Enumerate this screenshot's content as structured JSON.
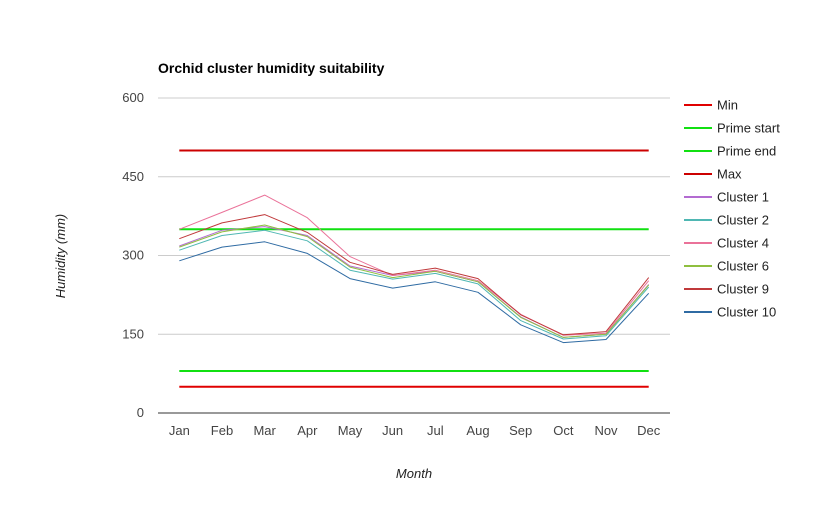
{
  "chart_data": {
    "type": "line",
    "title": "Orchid cluster humidity suitability",
    "xlabel": "Month",
    "ylabel": "Humidity (mm)",
    "categories": [
      "Jan",
      "Feb",
      "Mar",
      "Apr",
      "May",
      "Jun",
      "Jul",
      "Aug",
      "Sep",
      "Oct",
      "Nov",
      "Dec"
    ],
    "ylim": [
      0,
      600
    ],
    "yticks": [
      0,
      150,
      300,
      450,
      600
    ],
    "grid": true,
    "legend_position": "right",
    "series": [
      {
        "name": "Min",
        "color": "#e00000",
        "width": 2,
        "values": [
          50,
          50,
          50,
          50,
          50,
          50,
          50,
          50,
          50,
          50,
          50,
          50
        ]
      },
      {
        "name": "Prime start",
        "color": "#11e011",
        "width": 2,
        "values": [
          80,
          80,
          80,
          80,
          80,
          80,
          80,
          80,
          80,
          80,
          80,
          80
        ]
      },
      {
        "name": "Prime end",
        "color": "#11e011",
        "width": 2,
        "values": [
          350,
          350,
          350,
          350,
          350,
          350,
          350,
          350,
          350,
          350,
          350,
          350
        ]
      },
      {
        "name": "Max",
        "color": "#cc0000",
        "width": 2,
        "values": [
          500,
          500,
          500,
          500,
          500,
          500,
          500,
          500,
          500,
          500,
          500,
          500
        ]
      },
      {
        "name": "Cluster 1",
        "color": "#b36bd1",
        "width": 1,
        "values": [
          318,
          348,
          355,
          338,
          280,
          262,
          270,
          250,
          183,
          144,
          150,
          245
        ]
      },
      {
        "name": "Cluster 2",
        "color": "#4fb7b3",
        "width": 1,
        "values": [
          310,
          338,
          348,
          328,
          272,
          255,
          266,
          246,
          176,
          141,
          147,
          240
        ]
      },
      {
        "name": "Cluster 4",
        "color": "#ea7299",
        "width": 1,
        "values": [
          350,
          382,
          415,
          372,
          298,
          262,
          272,
          252,
          188,
          148,
          152,
          252
        ]
      },
      {
        "name": "Cluster 6",
        "color": "#8fbf3f",
        "width": 1,
        "values": [
          316,
          345,
          358,
          336,
          278,
          258,
          270,
          250,
          182,
          144,
          150,
          244
        ]
      },
      {
        "name": "Cluster 9",
        "color": "#c0393b",
        "width": 1,
        "values": [
          332,
          362,
          378,
          344,
          287,
          264,
          276,
          256,
          187,
          149,
          155,
          258
        ]
      },
      {
        "name": "Cluster 10",
        "color": "#2f6ba3",
        "width": 1,
        "values": [
          290,
          316,
          326,
          304,
          256,
          238,
          250,
          230,
          168,
          134,
          140,
          228
        ]
      }
    ]
  }
}
